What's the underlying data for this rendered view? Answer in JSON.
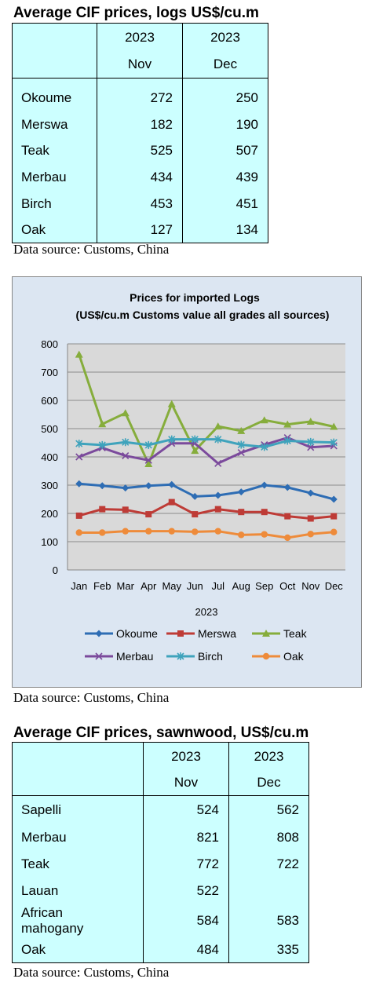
{
  "logs_section": {
    "title": "Average CIF prices, logs US$/cu.m",
    "columns": [
      {
        "year": "2023",
        "month": "Nov"
      },
      {
        "year": "2023",
        "month": "Dec"
      }
    ],
    "rows": [
      {
        "species": "Okoume",
        "nov": "272",
        "dec": "250"
      },
      {
        "species": "Merswa",
        "nov": "182",
        "dec": "190"
      },
      {
        "species": "Teak",
        "nov": "525",
        "dec": "507"
      },
      {
        "species": "Merbau",
        "nov": "434",
        "dec": "439"
      },
      {
        "species": "Birch",
        "nov": "453",
        "dec": "451"
      },
      {
        "species": "Oak",
        "nov": "127",
        "dec": "134"
      }
    ],
    "source": "Data source: Customs, China"
  },
  "chart_section": {
    "source": "Data source: Customs, China"
  },
  "chart_data": {
    "type": "line",
    "title": "Prices for imported Logs",
    "subtitle": "(US$/cu.m Customs value all grades all sources)",
    "xlabel": "2023",
    "ylabel": "",
    "ylim": [
      0,
      800
    ],
    "yticks": [
      "0",
      "100",
      "200",
      "300",
      "400",
      "500",
      "600",
      "700",
      "800"
    ],
    "grid": true,
    "legend_position": "bottom",
    "categories": [
      "Jan",
      "Feb",
      "Mar",
      "Apr",
      "May",
      "Jun",
      "Jul",
      "Aug",
      "Sep",
      "Oct",
      "Nov",
      "Dec"
    ],
    "series": [
      {
        "name": "Okoume",
        "color": "#2e6db4",
        "marker": "diamond",
        "values": [
          305,
          298,
          290,
          298,
          302,
          260,
          264,
          276,
          300,
          292,
          272,
          250
        ]
      },
      {
        "name": "Merswa",
        "color": "#be3b36",
        "marker": "square",
        "values": [
          192,
          215,
          213,
          197,
          240,
          197,
          215,
          205,
          205,
          190,
          182,
          190
        ]
      },
      {
        "name": "Teak",
        "color": "#86ad3c",
        "marker": "triangle",
        "values": [
          762,
          516,
          555,
          375,
          587,
          422,
          508,
          492,
          530,
          515,
          525,
          507
        ]
      },
      {
        "name": "Merbau",
        "color": "#7b4a9c",
        "marker": "x",
        "values": [
          400,
          432,
          404,
          388,
          448,
          448,
          377,
          415,
          443,
          468,
          434,
          439
        ]
      },
      {
        "name": "Birch",
        "color": "#3fa3bc",
        "marker": "star",
        "values": [
          447,
          442,
          452,
          442,
          462,
          462,
          462,
          443,
          435,
          457,
          453,
          451
        ]
      },
      {
        "name": "Oak",
        "color": "#ee8b3a",
        "marker": "circle",
        "values": [
          132,
          132,
          137,
          137,
          137,
          135,
          137,
          124,
          126,
          114,
          127,
          134
        ]
      }
    ]
  },
  "sawnwood_section": {
    "title": "Average CIF prices, sawnwood, US$/cu.m",
    "columns": [
      {
        "year": "2023",
        "month": "Nov"
      },
      {
        "year": "2023",
        "month": "Dec"
      }
    ],
    "rows": [
      {
        "species": "Sapelli",
        "nov": "524",
        "dec": "562"
      },
      {
        "species": "Merbau",
        "nov": "821",
        "dec": "808"
      },
      {
        "species": "Teak",
        "nov": "772",
        "dec": "722"
      },
      {
        "species": "Lauan",
        "nov": "522",
        "dec": ""
      },
      {
        "species": "African mahogany",
        "nov": "584",
        "dec": "583"
      },
      {
        "species": "Oak",
        "nov": "484",
        "dec": "335"
      }
    ],
    "source": "Data source: Customs, China"
  }
}
